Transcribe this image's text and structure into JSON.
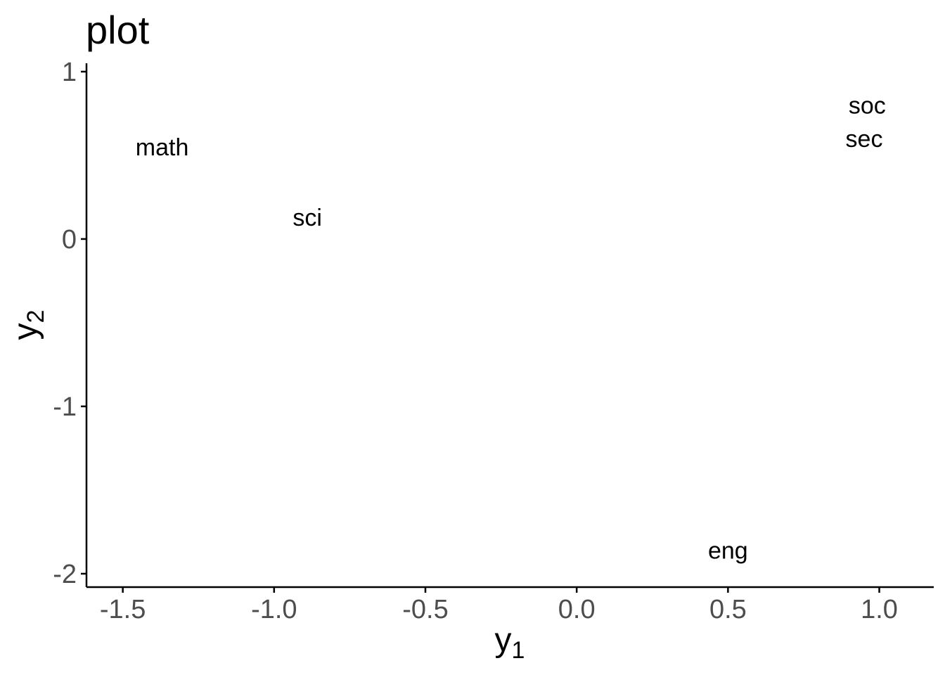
{
  "chart_data": {
    "type": "scatter",
    "title": "plot",
    "xlabel": {
      "base": "y",
      "sub": "1"
    },
    "ylabel": {
      "base": "y",
      "sub": "2"
    },
    "xlim": [
      -1.62,
      1.18
    ],
    "ylim": [
      -2.08,
      1.05
    ],
    "x_ticks": [
      -1.5,
      -1.0,
      -0.5,
      0.0,
      0.5,
      1.0
    ],
    "x_tick_labels": [
      "-1.5",
      "-1.0",
      "-0.5",
      "0.0",
      "0.5",
      "1.0"
    ],
    "y_ticks": [
      -2,
      -1,
      0,
      1
    ],
    "y_tick_labels": [
      "-2",
      "-1",
      "0",
      "1"
    ],
    "grid": false,
    "points": [
      {
        "label": "math",
        "x": -1.37,
        "y": 0.55
      },
      {
        "label": "sci",
        "x": -0.89,
        "y": 0.13
      },
      {
        "label": "soc",
        "x": 0.96,
        "y": 0.8
      },
      {
        "label": "sec",
        "x": 0.95,
        "y": 0.6
      },
      {
        "label": "eng",
        "x": 0.5,
        "y": -1.86
      }
    ]
  }
}
